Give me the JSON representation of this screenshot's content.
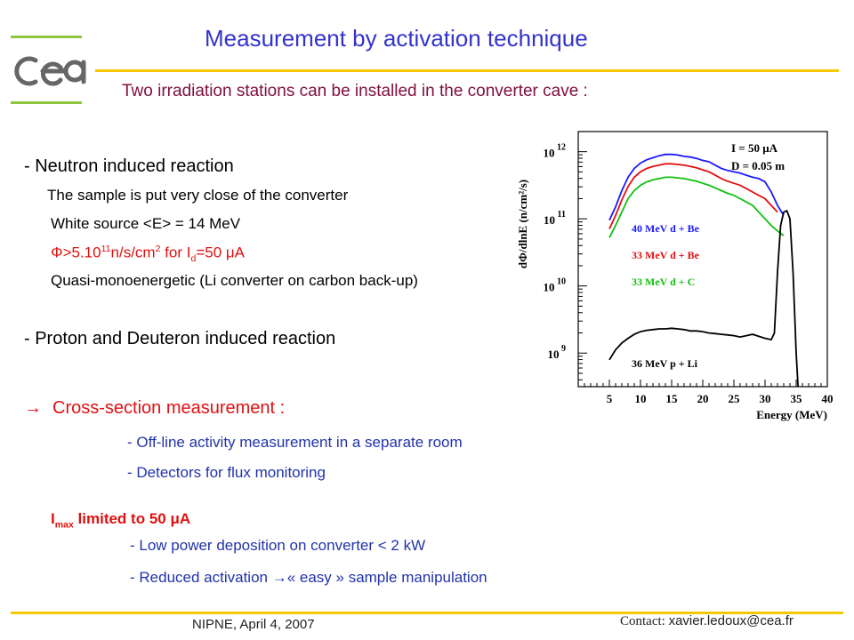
{
  "header": {
    "title": "Measurement by activation technique",
    "subtitle": "Two irradiation stations can be installed in the converter cave :"
  },
  "logo": {
    "text": "cea"
  },
  "body": {
    "neutron_heading": "- Neutron induced reaction",
    "sample_line": "The sample is put very close of the converter",
    "white_source": "White source <E> = 14 MeV",
    "flux_phi": "Φ",
    "flux_a": ">5.10",
    "flux_exp": "11",
    "flux_b": "n/s/cm",
    "flux_sq": "2",
    "flux_c": " for I",
    "flux_sub": "d",
    "flux_d": "=50 μA",
    "quasi": "Quasi-monoenergetic (Li converter on carbon back-up)",
    "proton_heading": "- Proton and Deuteron induced reaction",
    "arrow": "→",
    "cross_section": "Cross-section measurement :",
    "offline": "- Off-line activity measurement in a separate room",
    "detectors": "- Detectors for flux monitoring",
    "imax_i": "I",
    "imax_sub": "max",
    "imax_rest": " limited to 50 μA",
    "low_power": "- Low power deposition on converter < 2 kW",
    "reduced_a": "- Reduced activation ",
    "reduced_arrow": "→",
    "reduced_b": "« easy » sample manipulation"
  },
  "footer": {
    "left": "NIPNE, April 4, 2007",
    "contact_label": "Contact: ",
    "contact_email": "xavier.ledoux@cea.fr"
  },
  "colors": {
    "title": "#3333cc",
    "subtitle": "#801040",
    "body_blue": "#2233aa",
    "accent_red": "#e01010",
    "rule_yellow": "#f5c800",
    "logo_green": "#8dc63f",
    "logo_gray": "#666666"
  },
  "chart_data": {
    "type": "line",
    "xlabel": "Energy (MeV)",
    "ylabel": "dΦ/dlnE (n/cm²/s)",
    "xlim": [
      0,
      40
    ],
    "ylog": true,
    "ylim_exp": [
      8.5,
      12.3
    ],
    "x_ticks": [
      5,
      10,
      15,
      20,
      25,
      30,
      35,
      40
    ],
    "y_ticks": [
      {
        "base": "10",
        "exp": "9",
        "value_exp": 9
      },
      {
        "base": "10",
        "exp": "10",
        "value_exp": 10
      },
      {
        "base": "10",
        "exp": "11",
        "value_exp": 11
      },
      {
        "base": "10",
        "exp": "12",
        "value_exp": 12
      }
    ],
    "annotations": [
      "I =  50  μA",
      "D = 0.05 m"
    ],
    "series": [
      {
        "name": "40 MeV d + Be",
        "color": "#1a1aff",
        "x": [
          5,
          6,
          7,
          8,
          9,
          10,
          11,
          12,
          13,
          14,
          15,
          16,
          17,
          18,
          19,
          20,
          21,
          22,
          23,
          24,
          25,
          26,
          27,
          28,
          29,
          30,
          31,
          32,
          33
        ],
        "y_log10": [
          10.98,
          11.18,
          11.42,
          11.62,
          11.75,
          11.83,
          11.88,
          11.91,
          11.94,
          11.96,
          11.96,
          11.95,
          11.93,
          11.92,
          11.9,
          11.87,
          11.85,
          11.8,
          11.75,
          11.72,
          11.7,
          11.68,
          11.65,
          11.62,
          11.6,
          11.55,
          11.4,
          11.2,
          11.05
        ]
      },
      {
        "name": "33 MeV d + Be",
        "color": "#e01010",
        "x": [
          5,
          6,
          7,
          8,
          9,
          10,
          11,
          12,
          13,
          14,
          15,
          16,
          17,
          18,
          19,
          20,
          21,
          22,
          23,
          24,
          25,
          26,
          27,
          28,
          29,
          30,
          31,
          32
        ],
        "y_log10": [
          10.85,
          11.05,
          11.28,
          11.48,
          11.62,
          11.7,
          11.75,
          11.78,
          11.8,
          11.82,
          11.82,
          11.81,
          11.8,
          11.78,
          11.76,
          11.73,
          11.7,
          11.65,
          11.6,
          11.56,
          11.53,
          11.5,
          11.45,
          11.4,
          11.35,
          11.3,
          11.2,
          11.1
        ]
      },
      {
        "name": "33 MeV d + C",
        "color": "#10c010",
        "x": [
          5,
          6,
          7,
          8,
          9,
          10,
          11,
          12,
          13,
          14,
          15,
          16,
          17,
          18,
          19,
          20,
          21,
          22,
          23,
          24,
          25,
          26,
          27,
          28,
          29,
          30,
          31,
          32,
          33
        ],
        "y_log10": [
          10.72,
          10.9,
          11.1,
          11.3,
          11.42,
          11.5,
          11.55,
          11.58,
          11.6,
          11.62,
          11.62,
          11.61,
          11.6,
          11.58,
          11.56,
          11.53,
          11.5,
          11.46,
          11.42,
          11.38,
          11.35,
          11.3,
          11.25,
          11.2,
          11.1,
          11.0,
          10.9,
          10.82,
          10.75
        ]
      },
      {
        "name": "36 MeV p + Li",
        "color": "#000000",
        "x": [
          5,
          6,
          7,
          8,
          9,
          10,
          11,
          12,
          13,
          14,
          15,
          16,
          17,
          18,
          19,
          20,
          21,
          22,
          23,
          24,
          25,
          26,
          27,
          28,
          29,
          30,
          31,
          31.5,
          32,
          32.5,
          33,
          33.5,
          34,
          34.5,
          35,
          35.3
        ],
        "y_log10": [
          8.9,
          9.05,
          9.15,
          9.22,
          9.28,
          9.32,
          9.34,
          9.35,
          9.36,
          9.36,
          9.37,
          9.36,
          9.35,
          9.33,
          9.33,
          9.32,
          9.3,
          9.29,
          9.28,
          9.27,
          9.26,
          9.24,
          9.26,
          9.28,
          9.25,
          9.22,
          9.2,
          9.3,
          10.2,
          10.9,
          11.1,
          11.12,
          11.0,
          10.2,
          9.0,
          8.5
        ]
      }
    ]
  }
}
